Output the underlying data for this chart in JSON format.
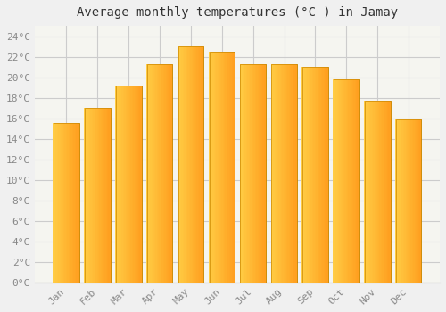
{
  "title": "Average monthly temperatures (°C ) in Jamay",
  "months": [
    "Jan",
    "Feb",
    "Mar",
    "Apr",
    "May",
    "Jun",
    "Jul",
    "Aug",
    "Sep",
    "Oct",
    "Nov",
    "Dec"
  ],
  "values": [
    15.5,
    17.0,
    19.2,
    21.3,
    23.0,
    22.5,
    21.3,
    21.3,
    21.0,
    19.8,
    17.7,
    15.9
  ],
  "bar_color_left": "#FFCC44",
  "bar_color_right": "#FFA020",
  "bar_border_color": "#CC8800",
  "ylim": [
    0,
    25
  ],
  "yticks": [
    0,
    2,
    4,
    6,
    8,
    10,
    12,
    14,
    16,
    18,
    20,
    22,
    24
  ],
  "background_color": "#f0f0f0",
  "plot_bg_color": "#f5f5f0",
  "grid_color": "#cccccc",
  "title_fontsize": 10,
  "tick_fontsize": 8,
  "tick_color": "#888888",
  "title_color": "#333333"
}
